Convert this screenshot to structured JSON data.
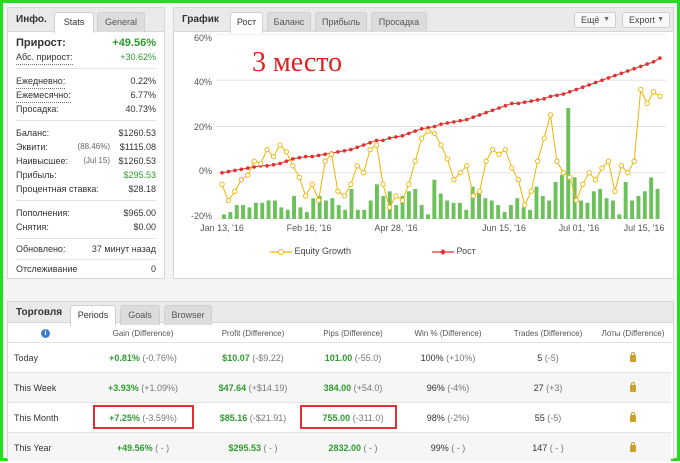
{
  "stats_panel": {
    "title": "Инфо.",
    "tabs": [
      "Stats",
      "General"
    ],
    "growth": {
      "label": "Прирост:",
      "value": "+49.56%"
    },
    "abs_growth": {
      "label": "Абс. прирост:",
      "value": "+30.62%"
    },
    "daily": {
      "label": "Ежедневно:",
      "value": "0.22%"
    },
    "monthly": {
      "label": "Ежемесячно:",
      "value": "6.77%"
    },
    "drawdown": {
      "label": "Просадка:",
      "value": "40.73%"
    },
    "balance": {
      "label": "Баланс:",
      "value": "$1260.53"
    },
    "equity": {
      "label": "Эквити:",
      "note": "(88.46%)",
      "value": "$1115.08"
    },
    "highest": {
      "label": "Наивысшее:",
      "note": "(Jul 15)",
      "value": "$1260.53"
    },
    "profit": {
      "label": "Прибыль:",
      "value": "$295.53"
    },
    "interest": {
      "label": "Процентная ставка:",
      "value": "$28.18"
    },
    "deposits": {
      "label": "Пополнения:",
      "value": "$965.00"
    },
    "withdrawals": {
      "label": "Снятия:",
      "value": "$0.00"
    },
    "updated": {
      "label": "Обновлено:",
      "value": "37 минут назад"
    },
    "tracking": {
      "label": "Отслеживание",
      "value": "0"
    }
  },
  "chart_panel": {
    "title": "График",
    "tabs": [
      "Рост",
      "Баланс",
      "Прибыль",
      "Просадка"
    ],
    "menu_label": "Ещё",
    "export_label": "Export",
    "overlay_text": "3 место"
  },
  "chart_data": {
    "type": "line",
    "ylim": [
      -20,
      60
    ],
    "yticks": [
      "60%",
      "40%",
      "20%",
      "0%",
      "-20%"
    ],
    "xticks": [
      "Jan 13, '16",
      "Feb 16, '16",
      "Apr 28, '16",
      "Jun 15, '16",
      "Jul 01, '16",
      "Jul 15, '16"
    ],
    "legend": [
      {
        "name": "Equity Growth",
        "color": "#f0b400"
      },
      {
        "name": "Рост",
        "color": "#e03030"
      }
    ],
    "series": [
      {
        "name": "Рост",
        "color": "#e03030",
        "values": [
          0,
          0.5,
          1,
          1.5,
          2,
          2.5,
          3,
          3,
          3.5,
          4,
          5,
          6,
          6.5,
          7,
          7,
          7.5,
          8,
          8.5,
          9,
          9.5,
          10,
          11,
          12,
          13,
          14,
          14,
          15,
          15.5,
          16,
          17,
          18,
          19,
          19.5,
          20,
          21,
          21.5,
          22,
          22.5,
          23,
          24,
          25,
          26,
          27,
          28,
          29,
          30,
          30,
          30.5,
          31,
          31.5,
          32,
          33,
          33.5,
          34,
          35,
          36,
          37,
          38,
          39,
          40,
          41,
          42,
          43,
          44,
          45,
          46,
          47,
          48,
          49.56
        ]
      },
      {
        "name": "Equity Growth",
        "color": "#f0b400",
        "values": [
          -5,
          -12,
          -8,
          -3,
          -1,
          5,
          4,
          10,
          7,
          12,
          9,
          3,
          -2,
          -10,
          -5,
          -12,
          5,
          8,
          -8,
          -10,
          -5,
          3,
          0,
          10,
          12,
          -5,
          -15,
          -10,
          -12,
          -5,
          5,
          15,
          18,
          17,
          12,
          6,
          -3,
          0,
          3,
          -10,
          -8,
          5,
          10,
          8,
          10,
          2,
          -3,
          -14,
          -8,
          5,
          15,
          25,
          5,
          0,
          -2,
          -12,
          -5,
          0,
          -3,
          2,
          5,
          -8,
          3,
          0,
          5,
          36,
          30,
          35,
          33
        ]
      }
    ],
    "bars": [
      -18,
      -17,
      -14,
      -14,
      -15,
      -13,
      -13,
      -12,
      -12,
      -15,
      -16,
      -10,
      -15,
      -17,
      -11,
      -10,
      -12,
      -11,
      -14,
      -16,
      -7,
      -16,
      -16,
      -12,
      -5,
      -10,
      -8,
      -14,
      -10,
      -8,
      -7,
      -14,
      -18,
      -3,
      -9,
      -12,
      -13,
      -13,
      -16,
      -6,
      -8,
      -11,
      -12,
      -14,
      -17,
      -14,
      -11,
      -15,
      -16,
      -6,
      -10,
      -12,
      -4,
      -1,
      28,
      -2,
      -12,
      -13,
      -8,
      -7,
      -11,
      -12,
      -18,
      -4,
      -12,
      -10,
      -8,
      -2,
      -7
    ]
  },
  "trading_panel": {
    "title": "Торговля",
    "tabs": [
      "Periods",
      "Goals",
      "Browser"
    ],
    "columns": [
      "Gain (Difference)",
      "Profit (Difference)",
      "Pips (Difference)",
      "Win % (Difference)",
      "Trades (Difference)",
      "Лоты (Difference)"
    ],
    "rows": [
      {
        "period": "Today",
        "gain": "+0.81%",
        "gain_diff": "(-0.76%)",
        "profit": "$10.07",
        "profit_diff": "(-$9.22)",
        "pips": "101.00",
        "pips_diff": "(-55.0)",
        "win": "100%",
        "win_diff": "(+10%)",
        "trades": "5",
        "trades_diff": "(-5)"
      },
      {
        "period": "This Week",
        "gain": "+3.93%",
        "gain_diff": "(+1.09%)",
        "profit": "$47.64",
        "profit_diff": "(+$14.19)",
        "pips": "384.00",
        "pips_diff": "(+54.0)",
        "win": "96%",
        "win_diff": "(-4%)",
        "trades": "27",
        "trades_diff": "(+3)"
      },
      {
        "period": "This Month",
        "gain": "+7.25%",
        "gain_diff": "(-3.59%)",
        "profit": "$85.16",
        "profit_diff": "(-$21.91)",
        "pips": "755.00",
        "pips_diff": "(-311.0)",
        "win": "98%",
        "win_diff": "(-2%)",
        "trades": "55",
        "trades_diff": "(-5)"
      },
      {
        "period": "This Year",
        "gain": "+49.56%",
        "gain_diff": "( - )",
        "profit": "$295.53",
        "profit_diff": "( - )",
        "pips": "2832.00",
        "pips_diff": "( - )",
        "win": "99%",
        "win_diff": "( - )",
        "trades": "147",
        "trades_diff": "( - )"
      }
    ]
  }
}
